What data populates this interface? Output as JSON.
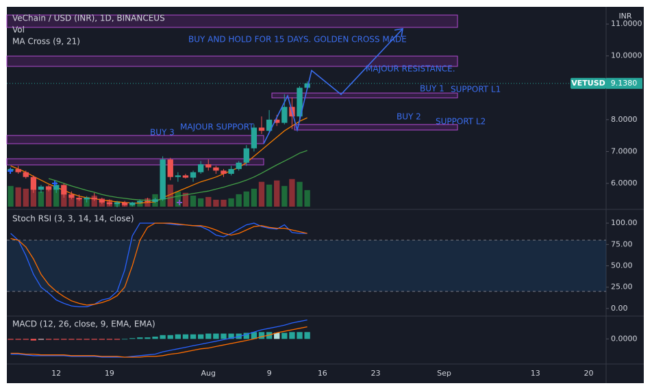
{
  "chart_data": [
    {
      "type": "candlestick",
      "title": "VeChain / USD (INR), 1D, BINANCEUS",
      "volume_label": "Vol",
      "ma_label": "MA Cross (9, 21)",
      "currency": "INR",
      "symbol": "VETUSD",
      "last_price": {
        "value": 9.138,
        "label": "9.1380"
      },
      "last_price_color": "#26a69a",
      "x": [
        6,
        7,
        8,
        9,
        10,
        11,
        12,
        13,
        14,
        15,
        16,
        17,
        18,
        19,
        20,
        21,
        22,
        23,
        24,
        25,
        26,
        27,
        28,
        29,
        30,
        31,
        32,
        33,
        34,
        35,
        36,
        37,
        38,
        39,
        40,
        41,
        42,
        43,
        44,
        45
      ],
      "open": [
        6.4,
        6.45,
        6.35,
        6.2,
        5.8,
        5.9,
        5.8,
        5.95,
        5.65,
        5.55,
        5.5,
        5.55,
        5.5,
        5.4,
        5.35,
        5.4,
        5.32,
        5.4,
        5.45,
        5.42,
        5.5,
        6.75,
        6.2,
        6.25,
        6.18,
        6.35,
        6.6,
        6.5,
        6.4,
        6.3,
        6.45,
        6.65,
        7.1,
        7.75,
        7.65,
        8.0,
        7.9,
        8.4,
        8.1,
        9.0
      ],
      "high": [
        6.5,
        6.55,
        6.4,
        6.25,
        5.95,
        5.95,
        6.05,
        6.0,
        5.75,
        5.65,
        5.6,
        5.7,
        5.55,
        5.5,
        5.45,
        5.45,
        5.42,
        5.5,
        5.55,
        5.55,
        6.85,
        6.8,
        6.35,
        6.3,
        6.4,
        6.7,
        6.75,
        6.55,
        6.45,
        6.55,
        6.7,
        7.2,
        7.85,
        8.1,
        8.3,
        8.15,
        8.8,
        8.7,
        9.05,
        9.2
      ],
      "low": [
        6.3,
        6.3,
        6.15,
        5.7,
        5.7,
        5.75,
        5.7,
        5.55,
        5.5,
        5.45,
        5.4,
        5.45,
        5.35,
        5.3,
        5.25,
        5.28,
        5.28,
        5.35,
        5.38,
        5.38,
        5.45,
        6.1,
        6.05,
        6.15,
        6.05,
        6.3,
        6.4,
        6.3,
        6.2,
        6.25,
        6.4,
        6.55,
        7.0,
        7.55,
        7.6,
        7.8,
        7.85,
        7.7,
        8.0,
        8.95
      ],
      "close": [
        6.45,
        6.35,
        6.2,
        5.8,
        5.9,
        5.8,
        5.95,
        5.65,
        5.55,
        5.5,
        5.55,
        5.5,
        5.4,
        5.35,
        5.4,
        5.32,
        5.4,
        5.45,
        5.42,
        5.5,
        6.75,
        6.2,
        6.25,
        6.18,
        6.35,
        6.6,
        6.5,
        6.4,
        6.3,
        6.45,
        6.65,
        7.1,
        7.75,
        7.65,
        8.0,
        7.9,
        8.4,
        8.1,
        9.0,
        9.138
      ],
      "up_color": "#26a69a",
      "down_color": "#ef5350",
      "volume": {
        "values": [
          30,
          28,
          26,
          30,
          22,
          30,
          26,
          22,
          18,
          12,
          14,
          16,
          12,
          10,
          8,
          6,
          6,
          8,
          12,
          18,
          48,
          32,
          22,
          20,
          16,
          12,
          14,
          10,
          10,
          12,
          18,
          22,
          26,
          36,
          32,
          38,
          30,
          40,
          36,
          24
        ],
        "ylim": [
          0,
          290
        ],
        "up_color": "#1e6b3a",
        "down_color": "#8a2f35"
      },
      "ma_lines": [
        {
          "color": "#f57c00",
          "values": [
            6.55,
            6.45,
            6.35,
            6.22,
            6.1,
            5.98,
            5.88,
            5.78,
            5.68,
            5.6,
            5.55,
            5.52,
            5.48,
            5.45,
            5.42,
            5.4,
            5.38,
            5.38,
            5.4,
            5.42,
            5.55,
            5.65,
            5.75,
            5.85,
            5.95,
            6.05,
            6.12,
            6.2,
            6.3,
            6.4,
            6.5,
            6.65,
            6.85,
            7.05,
            7.25,
            7.45,
            7.65,
            7.8,
            7.95,
            8.06
          ]
        },
        {
          "color": "#43a047",
          "values": [
            null,
            null,
            null,
            null,
            null,
            6.15,
            6.08,
            6.0,
            5.92,
            5.85,
            5.78,
            5.72,
            5.65,
            5.6,
            5.56,
            5.53,
            5.5,
            5.48,
            5.47,
            5.47,
            5.5,
            5.55,
            5.6,
            5.64,
            5.68,
            5.72,
            5.76,
            5.82,
            5.88,
            5.95,
            6.02,
            6.1,
            6.2,
            6.32,
            6.45,
            6.58,
            6.7,
            6.82,
            6.95,
            7.03
          ]
        }
      ],
      "annotations": [
        "BUY AND HOLD FOR 15 DAYS. GOLDEN CROSS MADE",
        "MAJOUR RESISTANCE.",
        "BUY 1",
        "SUPPORT L1",
        "BUY 2",
        "SUPPORT L2",
        "BUY 3",
        "MAJOUR SUPPORT"
      ],
      "annotation_color": "#3b6ef0",
      "ylim": [
        5.27,
        11.54
      ],
      "yticks": [
        {
          "value": 6,
          "label": "6.0000"
        },
        {
          "value": 7,
          "label": "7.0000"
        },
        {
          "value": 8,
          "label": "8.0000"
        },
        {
          "value": 10,
          "label": "10.0000"
        },
        {
          "value": 11,
          "label": "11.0000"
        }
      ],
      "xlim": [
        5.5,
        84.3
      ],
      "xticks": [
        12,
        19,
        {
          "value": 32,
          "label": "Aug"
        },
        {
          "value": 40,
          "label": "9"
        },
        {
          "value": 47,
          "label": "16"
        },
        {
          "value": 54,
          "label": "23"
        },
        {
          "value": 63,
          "label": "Sep"
        },
        {
          "value": 75,
          "label": "13"
        },
        {
          "value": 82,
          "label": "20"
        }
      ],
      "grid": false
    },
    {
      "type": "line",
      "title": "Stoch RSI (3, 3, 14, 14, close)",
      "series": [
        {
          "color": "#2962ff",
          "values": [
            88,
            80,
            62,
            40,
            25,
            18,
            10,
            6,
            3,
            2,
            2,
            5,
            10,
            12,
            20,
            45,
            85,
            100,
            100,
            100,
            100,
            99,
            98,
            98,
            97,
            96,
            92,
            86,
            84,
            88,
            93,
            98,
            100,
            96,
            94,
            93,
            98,
            89,
            88,
            88
          ]
        },
        {
          "color": "#ff6d00",
          "values": [
            82,
            80,
            72,
            58,
            40,
            28,
            20,
            14,
            9,
            6,
            4,
            5,
            7,
            10,
            15,
            25,
            50,
            80,
            95,
            100,
            100,
            100,
            99,
            98,
            97,
            97,
            95,
            92,
            88,
            86,
            88,
            92,
            96,
            97,
            95,
            94,
            94,
            92,
            90,
            88
          ]
        }
      ],
      "band": [
        20,
        80
      ],
      "band_color": "#2196f3",
      "ylim": [
        -7.3,
        112.9
      ],
      "yticks": [
        {
          "value": 100,
          "label": "100.00"
        },
        {
          "value": 75,
          "label": "75.00"
        },
        {
          "value": 50,
          "label": "50.00"
        },
        {
          "value": 25,
          "label": "25.00"
        },
        {
          "value": 0,
          "label": "0.00"
        }
      ]
    },
    {
      "type": "macd",
      "title": "MACD (12, 26, close, 9, EMA, EMA)",
      "series": [
        {
          "color": "#2962ff",
          "values": [
            -0.2,
            -0.2,
            -0.21,
            -0.22,
            -0.22,
            -0.22,
            -0.22,
            -0.22,
            -0.23,
            -0.23,
            -0.23,
            -0.23,
            -0.24,
            -0.24,
            -0.24,
            -0.24,
            -0.23,
            -0.22,
            -0.21,
            -0.2,
            -0.17,
            -0.15,
            -0.13,
            -0.11,
            -0.09,
            -0.07,
            -0.05,
            -0.03,
            -0.01,
            0.01,
            0.03,
            0.06,
            0.09,
            0.12,
            0.14,
            0.16,
            0.18,
            0.21,
            0.23,
            0.25
          ]
        },
        {
          "color": "#ff6d00",
          "values": [
            -0.19,
            -0.19,
            -0.2,
            -0.2,
            -0.21,
            -0.21,
            -0.21,
            -0.21,
            -0.22,
            -0.22,
            -0.22,
            -0.22,
            -0.23,
            -0.23,
            -0.23,
            -0.24,
            -0.24,
            -0.24,
            -0.23,
            -0.23,
            -0.22,
            -0.2,
            -0.19,
            -0.17,
            -0.15,
            -0.13,
            -0.12,
            -0.1,
            -0.08,
            -0.06,
            -0.04,
            -0.02,
            0.0,
            0.03,
            0.05,
            0.08,
            0.1,
            0.12,
            0.14,
            0.16
          ]
        }
      ],
      "histogram": {
        "values": [
          -0.01,
          -0.01,
          -0.01,
          -0.02,
          -0.01,
          -0.01,
          -0.01,
          -0.01,
          -0.01,
          -0.01,
          -0.01,
          -0.01,
          -0.01,
          -0.01,
          -0.01,
          0.0,
          0.01,
          0.02,
          0.02,
          0.03,
          0.05,
          0.05,
          0.06,
          0.06,
          0.06,
          0.06,
          0.07,
          0.07,
          0.07,
          0.07,
          0.07,
          0.08,
          0.09,
          0.09,
          0.09,
          0.08,
          0.08,
          0.09,
          0.09,
          0.09
        ],
        "colors": {
          "grow_above": "#26a69a",
          "fall_above": "#b2dfdb",
          "grow_below": "#ffcdd2",
          "fall_below": "#ff5252"
        }
      },
      "ylim": [
        -0.33,
        0.3
      ],
      "yticks": [
        {
          "value": 0,
          "label": "0.0000"
        }
      ]
    }
  ]
}
